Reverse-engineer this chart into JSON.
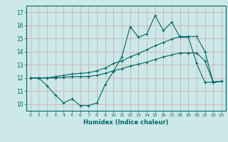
{
  "xlabel": "Humidex (Indice chaleur)",
  "bg_color": "#cce8e8",
  "line_color": "#006666",
  "grid_color": "#c8a8a8",
  "xlim": [
    -0.5,
    23.5
  ],
  "ylim": [
    9.5,
    17.5
  ],
  "xticks": [
    0,
    1,
    2,
    3,
    4,
    5,
    6,
    7,
    8,
    9,
    10,
    11,
    12,
    13,
    14,
    15,
    16,
    17,
    18,
    19,
    20,
    21,
    22,
    23
  ],
  "yticks": [
    10,
    11,
    12,
    13,
    14,
    15,
    16,
    17
  ],
  "line1_x": [
    0,
    1,
    2,
    3,
    4,
    5,
    6,
    7,
    8,
    9,
    10,
    11,
    12,
    13,
    14,
    15,
    16,
    17,
    18,
    19,
    20,
    21,
    22,
    23
  ],
  "line1_y": [
    12.0,
    12.0,
    11.4,
    10.7,
    10.1,
    10.4,
    9.9,
    9.9,
    10.1,
    11.5,
    12.5,
    13.6,
    15.9,
    15.1,
    15.35,
    16.75,
    15.6,
    16.25,
    15.1,
    15.1,
    13.1,
    11.65,
    11.7,
    11.75
  ],
  "line2_x": [
    0,
    1,
    2,
    3,
    4,
    5,
    6,
    7,
    8,
    9,
    10,
    11,
    12,
    13,
    14,
    15,
    16,
    17,
    18,
    19,
    20,
    21,
    22,
    23
  ],
  "line2_y": [
    12.0,
    12.0,
    12.0,
    12.1,
    12.2,
    12.3,
    12.35,
    12.4,
    12.55,
    12.75,
    13.1,
    13.3,
    13.6,
    13.85,
    14.15,
    14.45,
    14.7,
    14.95,
    15.15,
    15.15,
    15.15,
    14.0,
    11.65,
    11.75
  ],
  "line3_x": [
    0,
    1,
    2,
    3,
    4,
    5,
    6,
    7,
    8,
    9,
    10,
    11,
    12,
    13,
    14,
    15,
    16,
    17,
    18,
    19,
    20,
    21,
    22,
    23
  ],
  "line3_y": [
    12.0,
    12.0,
    12.0,
    12.0,
    12.05,
    12.1,
    12.1,
    12.12,
    12.2,
    12.35,
    12.55,
    12.7,
    12.9,
    13.05,
    13.2,
    13.4,
    13.6,
    13.75,
    13.9,
    13.9,
    13.9,
    13.3,
    11.65,
    11.75
  ]
}
